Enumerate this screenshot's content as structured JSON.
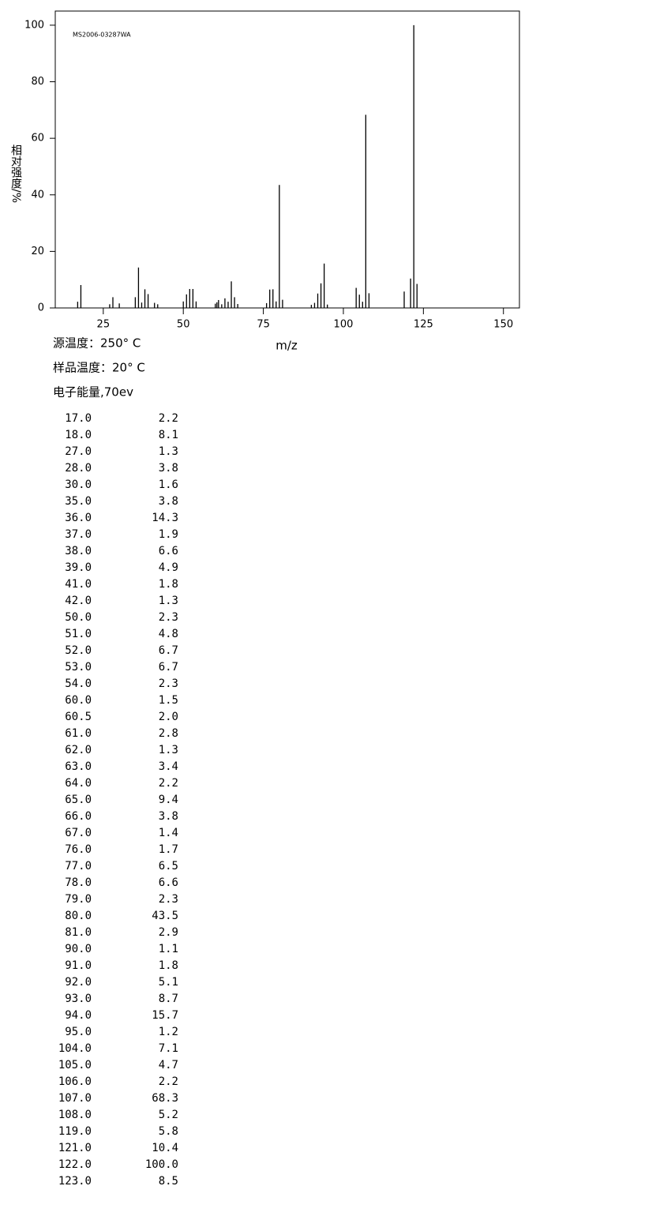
{
  "chart_data": {
    "type": "bar",
    "annotation": "MS2006-03287WA",
    "xlabel": "m/z",
    "ylabel": "相对强度/%",
    "x": [
      17,
      18,
      27,
      28,
      30,
      35,
      36,
      37,
      38,
      39,
      41,
      42,
      50,
      51,
      52,
      53,
      54,
      60,
      60.5,
      61,
      62,
      63,
      64,
      65,
      66,
      67,
      76,
      77,
      78,
      79,
      80,
      81,
      90,
      91,
      92,
      93,
      94,
      95,
      104,
      105,
      106,
      107,
      108,
      119,
      121,
      122,
      123
    ],
    "values": [
      2.2,
      8.1,
      1.3,
      3.8,
      1.6,
      3.8,
      14.3,
      1.9,
      6.6,
      4.9,
      1.8,
      1.3,
      2.3,
      4.8,
      6.7,
      6.7,
      2.3,
      1.5,
      2.0,
      2.8,
      1.3,
      3.4,
      2.2,
      9.4,
      3.8,
      1.4,
      1.7,
      6.5,
      6.6,
      2.3,
      43.5,
      2.9,
      1.1,
      1.8,
      5.1,
      8.7,
      15.7,
      1.2,
      7.1,
      4.7,
      2.2,
      68.3,
      5.2,
      5.8,
      10.4,
      100.0,
      8.5
    ],
    "color": "#000000",
    "xlim": [
      10,
      155
    ],
    "xticks": [
      25,
      50,
      75,
      100,
      125,
      150
    ],
    "ylim": [
      0,
      105
    ],
    "yticks": [
      0,
      20,
      40,
      60,
      80,
      100
    ]
  },
  "conditions": [
    "源温度：250° C",
    "样品温度：20° C",
    "电子能量,70ev"
  ],
  "table": {
    "rows": [
      [
        "17.0",
        "2.2"
      ],
      [
        "18.0",
        "8.1"
      ],
      [
        "27.0",
        "1.3"
      ],
      [
        "28.0",
        "3.8"
      ],
      [
        "30.0",
        "1.6"
      ],
      [
        "35.0",
        "3.8"
      ],
      [
        "36.0",
        "14.3"
      ],
      [
        "37.0",
        "1.9"
      ],
      [
        "38.0",
        "6.6"
      ],
      [
        "39.0",
        "4.9"
      ],
      [
        "41.0",
        "1.8"
      ],
      [
        "42.0",
        "1.3"
      ],
      [
        "50.0",
        "2.3"
      ],
      [
        "51.0",
        "4.8"
      ],
      [
        "52.0",
        "6.7"
      ],
      [
        "53.0",
        "6.7"
      ],
      [
        "54.0",
        "2.3"
      ],
      [
        "60.0",
        "1.5"
      ],
      [
        "60.5",
        "2.0"
      ],
      [
        "61.0",
        "2.8"
      ],
      [
        "62.0",
        "1.3"
      ],
      [
        "63.0",
        "3.4"
      ],
      [
        "64.0",
        "2.2"
      ],
      [
        "65.0",
        "9.4"
      ],
      [
        "66.0",
        "3.8"
      ],
      [
        "67.0",
        "1.4"
      ],
      [
        "76.0",
        "1.7"
      ],
      [
        "77.0",
        "6.5"
      ],
      [
        "78.0",
        "6.6"
      ],
      [
        "79.0",
        "2.3"
      ],
      [
        "80.0",
        "43.5"
      ],
      [
        "81.0",
        "2.9"
      ],
      [
        "90.0",
        "1.1"
      ],
      [
        "91.0",
        "1.8"
      ],
      [
        "92.0",
        "5.1"
      ],
      [
        "93.0",
        "8.7"
      ],
      [
        "94.0",
        "15.7"
      ],
      [
        "95.0",
        "1.2"
      ],
      [
        "104.0",
        "7.1"
      ],
      [
        "105.0",
        "4.7"
      ],
      [
        "106.0",
        "2.2"
      ],
      [
        "107.0",
        "68.3"
      ],
      [
        "108.0",
        "5.2"
      ],
      [
        "119.0",
        "5.8"
      ],
      [
        "121.0",
        "10.4"
      ],
      [
        "122.0",
        "100.0"
      ],
      [
        "123.0",
        "8.5"
      ]
    ]
  }
}
